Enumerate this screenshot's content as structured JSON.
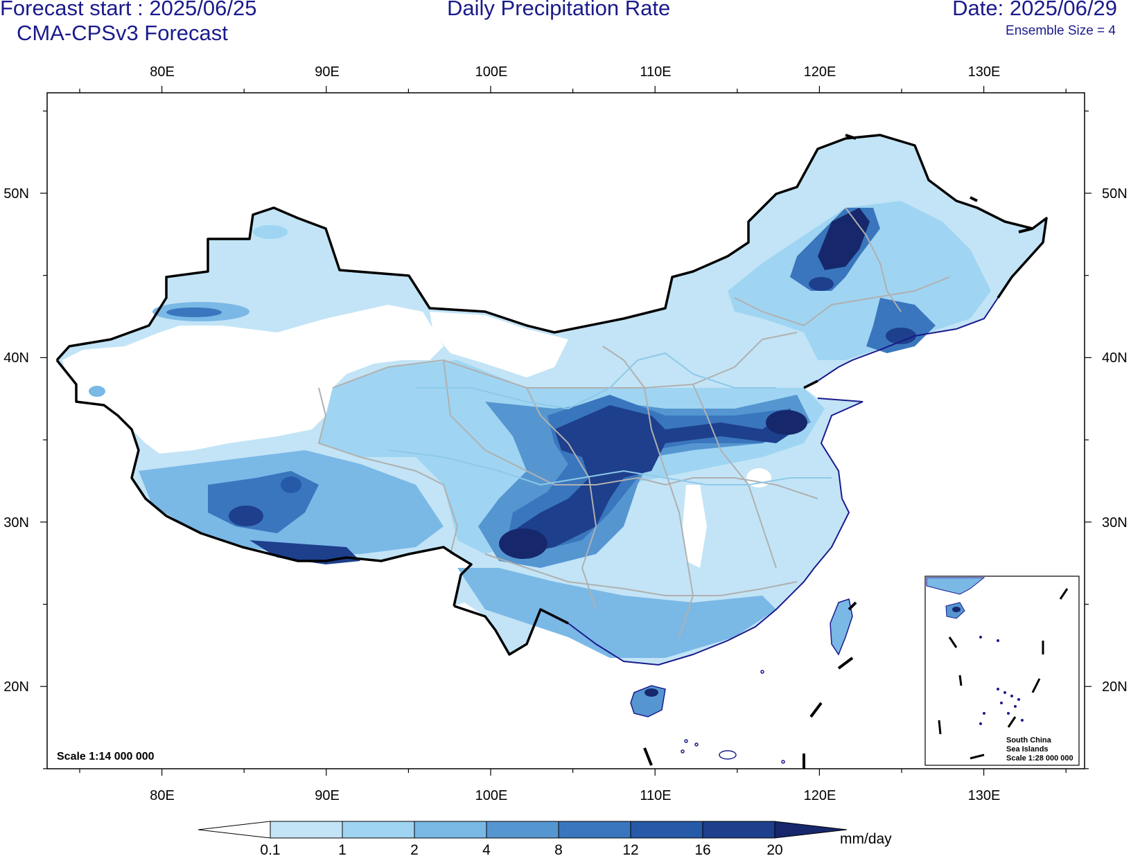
{
  "header": {
    "forecast_start": "Forecast start : 2025/06/25",
    "model": "CMA-CPSv3 Forecast",
    "title": "Daily Precipitation Rate",
    "date": "Date: 2025/06/29",
    "ensemble": "Ensemble Size = 4"
  },
  "axes": {
    "lon_labels": [
      "80E",
      "90E",
      "100E",
      "110E",
      "120E",
      "130E"
    ],
    "lat_labels": [
      "50N",
      "40N",
      "30N",
      "20N"
    ]
  },
  "scale_main": "Scale 1:14 000 000",
  "inset": {
    "line1": "South China",
    "line2": "Sea Islands",
    "line3": "Scale 1:28 000 000"
  },
  "colorbar": {
    "unit": "mm/day",
    "levels": [
      "0.1",
      "1",
      "2",
      "4",
      "8",
      "12",
      "16",
      "20"
    ],
    "colors": [
      "#ffffff",
      "#c2e4f6",
      "#9fd5f2",
      "#7ab8e6",
      "#5596d1",
      "#3a76bd",
      "#265aa8",
      "#1d3f8c",
      "#16286b"
    ]
  },
  "colors": {
    "title": "#1a1a8c",
    "land_light": "#c2e4f6",
    "land_mid": "#9fd5f2",
    "rain_4": "#7ab8e6",
    "rain_8": "#5596d1",
    "rain_12": "#3a76bd",
    "rain_16": "#265aa8",
    "rain_20": "#16286b",
    "province_border": "#b0b0b0",
    "river": "#8ec9e8",
    "coast": "#1a1a8c"
  }
}
